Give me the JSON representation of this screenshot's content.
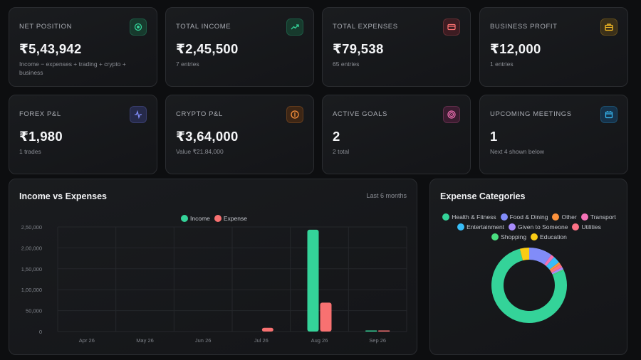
{
  "stats": [
    {
      "label": "NET POSITION",
      "value": "₹5,43,942",
      "sub": "Income − expenses + trading + crypto + business",
      "icon": "target-icon",
      "color": "#34d399",
      "bg": "#173a2d"
    },
    {
      "label": "TOTAL INCOME",
      "value": "₹2,45,500",
      "sub": "7 entries",
      "icon": "trend-up-icon",
      "color": "#34d399",
      "bg": "#173a2d"
    },
    {
      "label": "TOTAL EXPENSES",
      "value": "₹79,538",
      "sub": "65 entries",
      "icon": "credit-card-icon",
      "color": "#f87171",
      "bg": "#3d1c22"
    },
    {
      "label": "BUSINESS PROFIT",
      "value": "₹12,000",
      "sub": "1 entries",
      "icon": "briefcase-icon",
      "color": "#fbbf24",
      "bg": "#3b3019"
    },
    {
      "label": "FOREX P&L",
      "value": "₹1,980",
      "sub": "1 trades",
      "icon": "pulse-icon",
      "color": "#818cf8",
      "bg": "#262a4a"
    },
    {
      "label": "CRYPTO P&L",
      "value": "₹3,64,000",
      "sub": "Value ₹21,84,000",
      "icon": "coin-icon",
      "color": "#fb923c",
      "bg": "#3d2615"
    },
    {
      "label": "ACTIVE GOALS",
      "value": "2",
      "sub": "2 total",
      "icon": "goal-icon",
      "color": "#f472b6",
      "bg": "#3b1c30"
    },
    {
      "label": "UPCOMING MEETINGS",
      "value": "1",
      "sub": "Next 4 shown below",
      "icon": "calendar-icon",
      "color": "#38bdf8",
      "bg": "#16324a"
    }
  ],
  "income_panel": {
    "title": "Income vs Expenses",
    "note": "Last 6 months"
  },
  "expense_panel": {
    "title": "Expense Categories"
  },
  "chart_data": [
    {
      "type": "bar",
      "categories": [
        "Apr 26",
        "May 26",
        "Jun 26",
        "Jul 26",
        "Aug 26",
        "Sep 26"
      ],
      "series": [
        {
          "name": "Income",
          "color": "#34d399",
          "values": [
            0,
            0,
            0,
            0,
            243500,
            2000
          ]
        },
        {
          "name": "Expense",
          "color": "#f87171",
          "values": [
            0,
            0,
            0,
            9000,
            69000,
            1500
          ]
        }
      ],
      "yticks": [
        "0",
        "50,000",
        "1,00,000",
        "1,50,000",
        "2,00,000",
        "2,50,000"
      ],
      "ylim": [
        0,
        250000
      ],
      "legend": "top-center",
      "grid": true
    },
    {
      "type": "pie",
      "style": "donut",
      "slices": [
        {
          "name": "Health & Fitness",
          "color": "#34d399",
          "value": 77.5
        },
        {
          "name": "Food & Dining",
          "color": "#818cf8",
          "value": 10
        },
        {
          "name": "Other",
          "color": "#fb923c",
          "value": 1
        },
        {
          "name": "Transport",
          "color": "#f472b6",
          "value": 1.5
        },
        {
          "name": "Entertainment",
          "color": "#38bdf8",
          "value": 3
        },
        {
          "name": "Given to Someone",
          "color": "#a78bfa",
          "value": 1
        },
        {
          "name": "Utilities",
          "color": "#fb7185",
          "value": 1.5
        },
        {
          "name": "Shopping",
          "color": "#4ade80",
          "value": 0.5
        },
        {
          "name": "Education",
          "color": "#facc15",
          "value": 4
        }
      ],
      "legend": "top"
    }
  ]
}
